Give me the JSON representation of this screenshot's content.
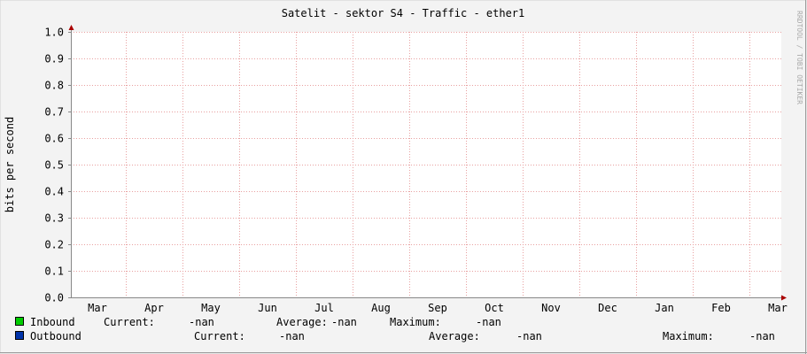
{
  "chart_data": {
    "type": "line",
    "title": "Satelit - sektor S4 - Traffic - ether1",
    "y_label": "bits per second",
    "watermark": "RRDTOOL / TOBI OETIKER",
    "categories": [
      "Mar",
      "Apr",
      "May",
      "Jun",
      "Jul",
      "Aug",
      "Sep",
      "Oct",
      "Nov",
      "Dec",
      "Jan",
      "Feb",
      "Mar"
    ],
    "ylim": [
      0,
      1
    ],
    "yticks": [
      {
        "value": 0,
        "label": "0.0"
      },
      {
        "value": 0.1,
        "label": "0.1"
      },
      {
        "value": 0.2,
        "label": "0.2"
      },
      {
        "value": 0.3,
        "label": "0.3"
      },
      {
        "value": 0.4,
        "label": "0.4"
      },
      {
        "value": 0.5,
        "label": "0.5"
      },
      {
        "value": 0.6,
        "label": "0.6"
      },
      {
        "value": 0.7,
        "label": "0.7"
      },
      {
        "value": 0.8,
        "label": "0.8"
      },
      {
        "value": 0.9,
        "label": "0.9"
      },
      {
        "value": 1,
        "label": "1.0"
      }
    ],
    "grid": true,
    "series": [
      {
        "name": "Inbound",
        "color": "#00cc00",
        "values": [
          null,
          null,
          null,
          null,
          null,
          null,
          null,
          null,
          null,
          null,
          null,
          null,
          null
        ],
        "stats": [
          {
            "label": "Current:",
            "value": "-nan"
          },
          {
            "label": "Average:",
            "value": "-nan"
          },
          {
            "label": "Maximum:",
            "value": "-nan"
          }
        ]
      },
      {
        "name": "Outbound",
        "color": "#0033aa",
        "values": [
          null,
          null,
          null,
          null,
          null,
          null,
          null,
          null,
          null,
          null,
          null,
          null,
          null
        ],
        "stats": [
          {
            "label": "Current:",
            "value": "-nan"
          },
          {
            "label": "Average:",
            "value": "-nan"
          },
          {
            "label": "Maximum:",
            "value": "-nan"
          }
        ]
      }
    ]
  }
}
